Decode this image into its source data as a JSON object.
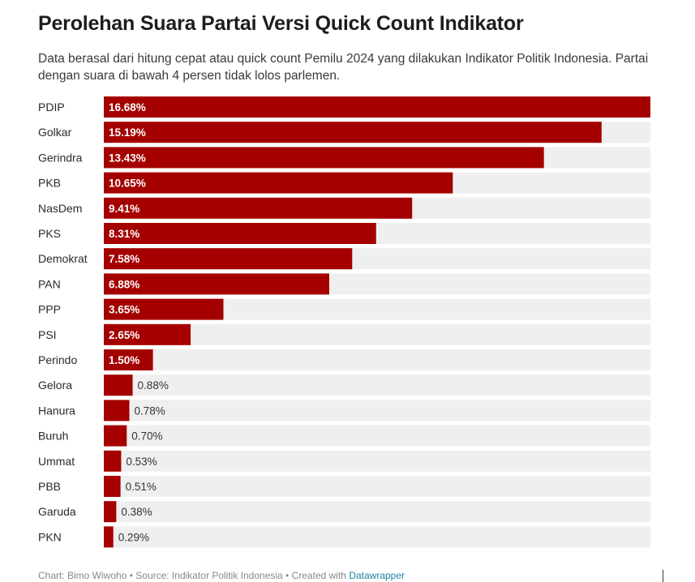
{
  "title": "Perolehan Suara Partai Versi Quick Count Indikator",
  "subtitle": "Data berasal dari hitung cepat atau quick count Pemilu 2024 yang dilakukan Indikator Politik Indonesia. Partai dengan suara di bawah 4 persen tidak lolos parlemen.",
  "footer": {
    "chart_credit": "Chart: Bimo Wiwoho",
    "source": "Source: Indikator Politik Indonesia",
    "created_with": "Created with",
    "tool": "Datawrapper",
    "separator": "•"
  },
  "colors": {
    "bar": "#a50000",
    "track": "#efefef",
    "label_inside": "#ffffff",
    "label_outside": "#333333"
  },
  "chart_data": {
    "type": "bar",
    "orientation": "horizontal",
    "categories": [
      "PDIP",
      "Golkar",
      "Gerindra",
      "PKB",
      "NasDem",
      "PKS",
      "Demokrat",
      "PAN",
      "PPP",
      "PSI",
      "Perindo",
      "Gelora",
      "Hanura",
      "Buruh",
      "Ummat",
      "PBB",
      "Garuda",
      "PKN"
    ],
    "values": [
      16.68,
      15.19,
      13.43,
      10.65,
      9.41,
      8.31,
      7.58,
      6.88,
      3.65,
      2.65,
      1.5,
      0.88,
      0.78,
      0.7,
      0.53,
      0.51,
      0.38,
      0.29
    ],
    "value_labels": [
      "16.68%",
      "15.19%",
      "13.43%",
      "10.65%",
      "9.41%",
      "8.31%",
      "7.58%",
      "6.88%",
      "3.65%",
      "2.65%",
      "1.50%",
      "0.88%",
      "0.78%",
      "0.70%",
      "0.53%",
      "0.51%",
      "0.38%",
      "0.29%"
    ],
    "xlim": [
      0,
      16.68
    ],
    "grid": false,
    "legend": "none"
  }
}
